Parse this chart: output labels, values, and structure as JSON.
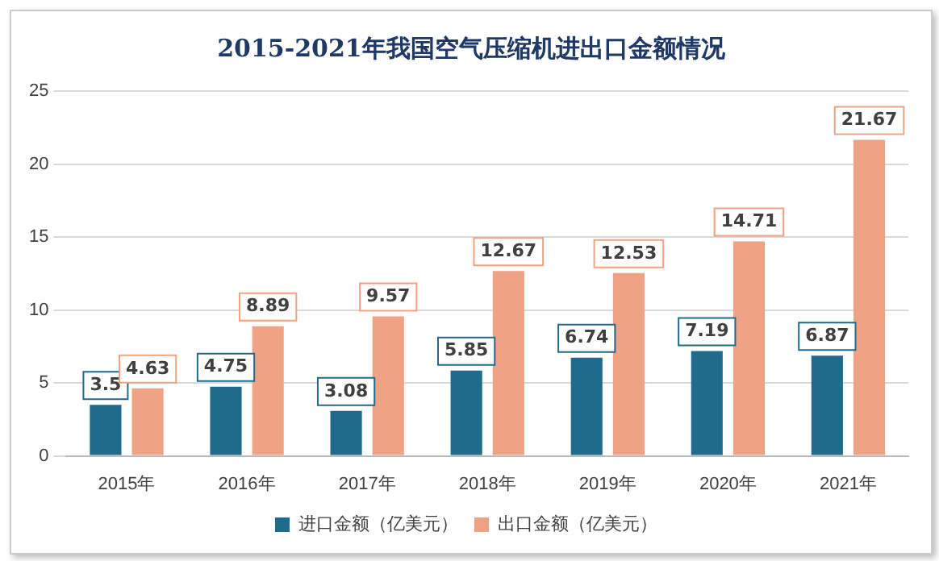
{
  "chart_data": {
    "type": "bar",
    "title": "2015-2021年我国空气压缩机进出口金额情况",
    "categories": [
      "2015年",
      "2016年",
      "2017年",
      "2018年",
      "2019年",
      "2020年",
      "2021年"
    ],
    "series": [
      {
        "name": "进口金额（亿美元）",
        "color": "#1f6b8e",
        "values": [
          3.5,
          4.75,
          3.08,
          5.85,
          6.74,
          7.19,
          6.87
        ]
      },
      {
        "name": "出口金额（亿美元）",
        "color": "#f0a284",
        "values": [
          4.63,
          8.89,
          9.57,
          12.67,
          12.53,
          14.71,
          21.67
        ]
      }
    ],
    "ylim": [
      0,
      25
    ],
    "yticks": [
      0,
      5,
      10,
      15,
      20,
      25
    ],
    "grid": "y",
    "legend": "bottom",
    "data_labels": true
  }
}
